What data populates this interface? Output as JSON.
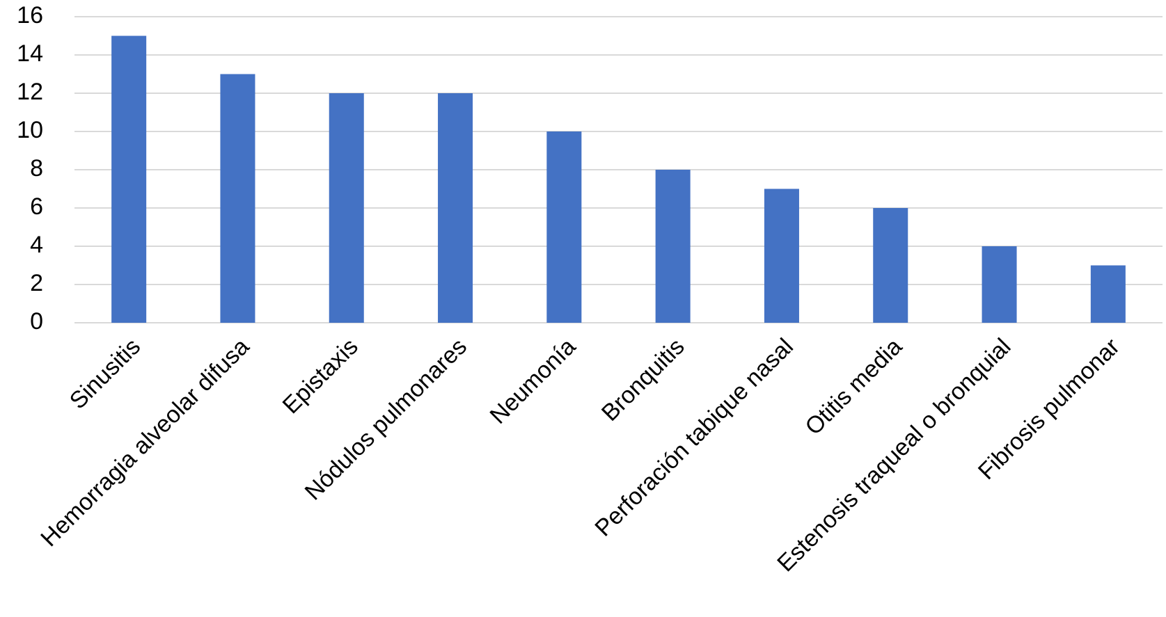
{
  "chart_data": {
    "type": "bar",
    "categories": [
      "Sinusitis",
      "Hemorragia alveolar difusa",
      "Epistaxis",
      "Nódulos pulmonares",
      "Neumonía",
      "Bronquitis",
      "Perforación tabique nasal",
      "Otitis media",
      "Estenosis traqueal o bronquial",
      "Fibrosis pulmonar"
    ],
    "values": [
      15,
      13,
      12,
      12,
      10,
      8,
      7,
      6,
      4,
      3
    ],
    "color": "#4472c4",
    "ylim": [
      0,
      16
    ],
    "yticks": [
      0,
      2,
      4,
      6,
      8,
      10,
      12,
      14,
      16
    ],
    "grid": true
  }
}
